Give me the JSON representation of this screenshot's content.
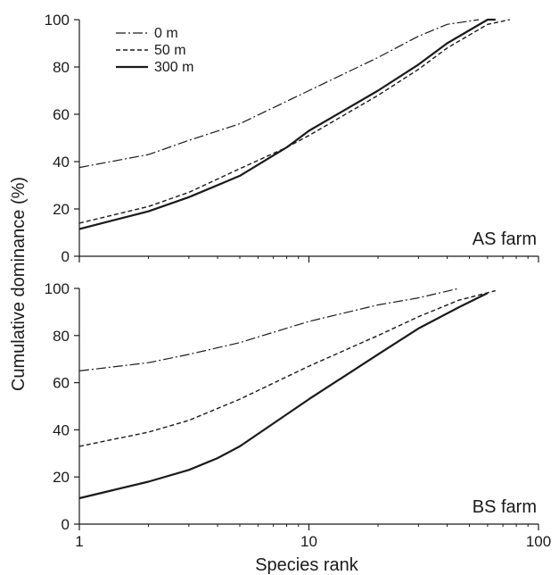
{
  "chart_data": [
    {
      "type": "line",
      "panel_label": "AS farm",
      "x_scale": "log",
      "xlim": [
        1,
        100
      ],
      "ylim": [
        0,
        100
      ],
      "x_ticks": [
        1,
        10,
        100
      ],
      "y_ticks": [
        0,
        20,
        40,
        60,
        80,
        100
      ],
      "grid": false,
      "legend_position": "top-left",
      "series": [
        {
          "name": "0 m",
          "style": "dash-dot",
          "points": [
            [
              1,
              37.5
            ],
            [
              2,
              43
            ],
            [
              3,
              49
            ],
            [
              5,
              56
            ],
            [
              10,
              70
            ],
            [
              20,
              84
            ],
            [
              30,
              93
            ],
            [
              40,
              98
            ],
            [
              55,
              100
            ]
          ]
        },
        {
          "name": "50 m",
          "style": "dashed",
          "points": [
            [
              1,
              14
            ],
            [
              2,
              21
            ],
            [
              3,
              27
            ],
            [
              5,
              37
            ],
            [
              8,
              46
            ],
            [
              10,
              51
            ],
            [
              20,
              68
            ],
            [
              30,
              79
            ],
            [
              40,
              88
            ],
            [
              60,
              98
            ],
            [
              75,
              100
            ]
          ]
        },
        {
          "name": "300 m",
          "style": "solid",
          "points": [
            [
              1,
              11.5
            ],
            [
              2,
              19
            ],
            [
              3,
              25
            ],
            [
              5,
              34
            ],
            [
              8,
              46
            ],
            [
              10,
              53
            ],
            [
              20,
              70
            ],
            [
              30,
              81
            ],
            [
              40,
              90
            ],
            [
              60,
              100
            ],
            [
              65,
              100
            ]
          ]
        }
      ]
    },
    {
      "type": "line",
      "panel_label": "BS farm",
      "x_scale": "log",
      "xlim": [
        1,
        100
      ],
      "ylim": [
        0,
        100
      ],
      "x_ticks": [
        1,
        10,
        100
      ],
      "y_ticks": [
        0,
        20,
        40,
        60,
        80,
        100
      ],
      "grid": false,
      "series": [
        {
          "name": "0 m",
          "style": "dash-dot",
          "points": [
            [
              1,
              65
            ],
            [
              2,
              68.5
            ],
            [
              3,
              72
            ],
            [
              5,
              77
            ],
            [
              10,
              86
            ],
            [
              20,
              93
            ],
            [
              30,
              96
            ],
            [
              45,
              100
            ]
          ]
        },
        {
          "name": "50 m",
          "style": "dashed",
          "points": [
            [
              1,
              33
            ],
            [
              2,
              39
            ],
            [
              3,
              44
            ],
            [
              5,
              53
            ],
            [
              10,
              67
            ],
            [
              20,
              80
            ],
            [
              30,
              88
            ],
            [
              45,
              95
            ],
            [
              65,
              99
            ]
          ]
        },
        {
          "name": "300 m",
          "style": "solid",
          "points": [
            [
              1,
              11
            ],
            [
              2,
              18
            ],
            [
              3,
              23
            ],
            [
              4,
              28
            ],
            [
              5,
              33
            ],
            [
              10,
              53
            ],
            [
              20,
              72
            ],
            [
              30,
              83
            ],
            [
              45,
              92
            ],
            [
              60,
              98
            ]
          ]
        }
      ]
    }
  ],
  "axes": {
    "ylabel": "Cumulative dominance (%)",
    "xlabel": "Species rank"
  },
  "colors": {
    "line": "#1a1a1a",
    "axis": "#1a1a1a",
    "background": "#ffffff"
  }
}
